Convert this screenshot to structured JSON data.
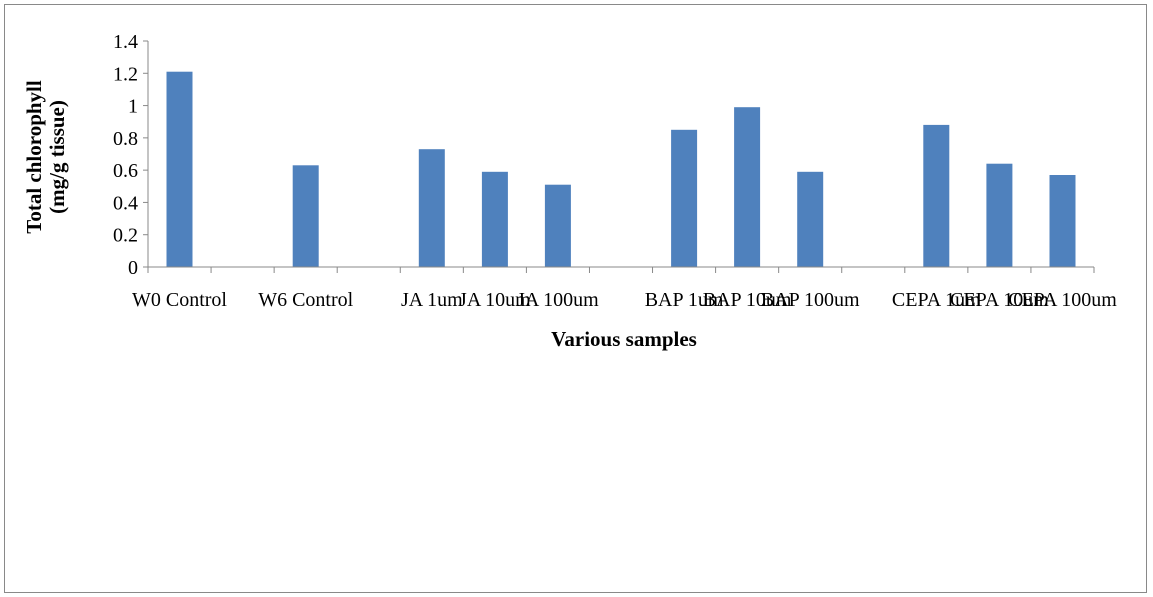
{
  "chart_data": {
    "type": "bar",
    "categories": [
      "W0 Control",
      "",
      "W6 Control",
      "",
      "JA 1um",
      "JA 10um",
      "JA 100um",
      "",
      "BAP 1um",
      "BAP 10um",
      "BAP 100um",
      "",
      "CEPA 1um",
      "CEPA 10um",
      "CEPA 100um"
    ],
    "values": [
      1.21,
      null,
      0.63,
      null,
      0.73,
      0.59,
      0.51,
      null,
      0.85,
      0.99,
      0.59,
      null,
      0.88,
      0.64,
      0.57
    ],
    "xlabel": "Various samples",
    "ylabel_lines": [
      "Total chlorophyll",
      "(mg/g tissue)"
    ],
    "ylim": [
      0,
      1.4
    ],
    "yticks": [
      "0",
      "0.2",
      "0.4",
      "0.6",
      "0.8",
      "1",
      "1.2",
      "1.4"
    ],
    "grid": false,
    "legend": "none",
    "bar_color": "#4F81BD"
  }
}
